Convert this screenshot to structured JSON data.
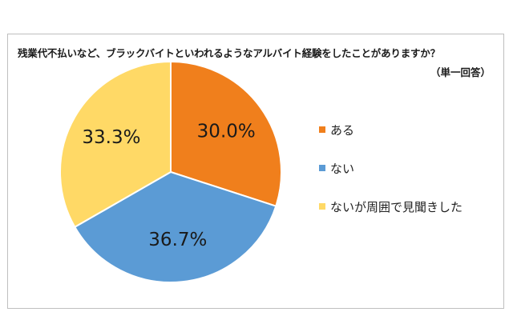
{
  "chart_data": {
    "type": "pie",
    "title": "残業代不払いなど、ブラックバイトといわれるようなアルバイト経験をしたことがありますか？",
    "subtitle": "（単一回答）",
    "legend_position": "right",
    "slices": [
      {
        "label": "ある",
        "value": 30.0,
        "display": "30.0%",
        "color": "#F07F1C"
      },
      {
        "label": "ない",
        "value": 36.7,
        "display": "36.7%",
        "color": "#5B9BD5"
      },
      {
        "label": "ないが周囲で見聞きした",
        "value": 33.3,
        "display": "33.3%",
        "color": "#FFD966"
      }
    ]
  }
}
